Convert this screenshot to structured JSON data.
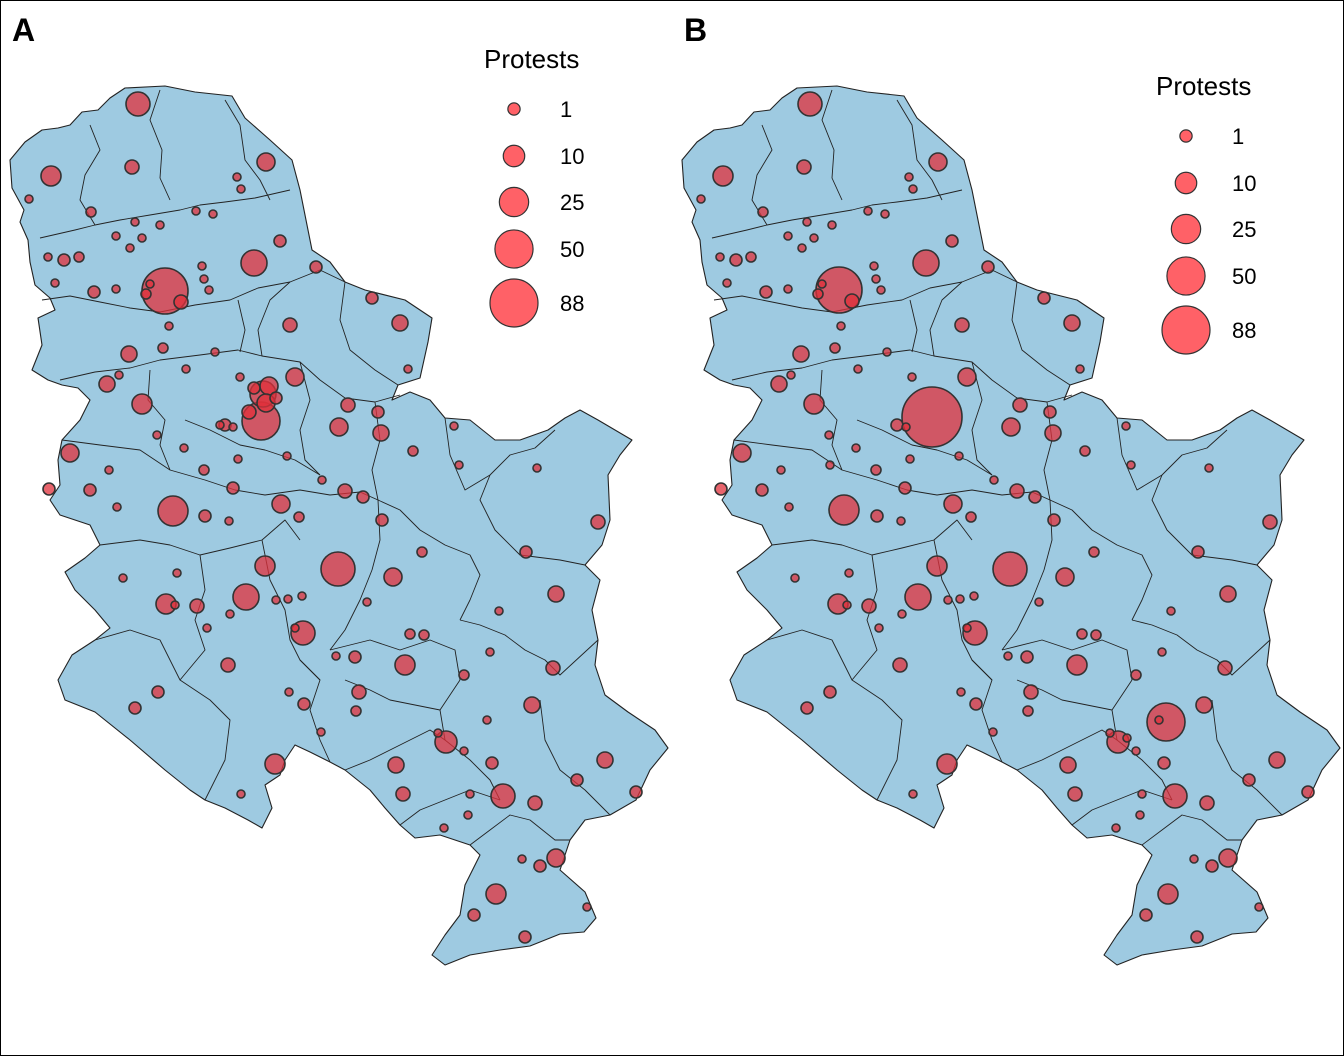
{
  "panels": [
    {
      "id": "A",
      "label": "A",
      "legend": {
        "title": "Protests",
        "entries": [
          {
            "label": "1",
            "value": 1
          },
          {
            "label": "10",
            "value": 10
          },
          {
            "label": "25",
            "value": 25
          },
          {
            "label": "50",
            "value": 50
          },
          {
            "label": "88",
            "value": 88
          }
        ]
      }
    },
    {
      "id": "B",
      "label": "B",
      "legend": {
        "title": "Protests",
        "entries": [
          {
            "label": "1",
            "value": 1
          },
          {
            "label": "10",
            "value": 10
          },
          {
            "label": "25",
            "value": 25
          },
          {
            "label": "50",
            "value": 50
          },
          {
            "label": "88",
            "value": 88
          }
        ]
      }
    }
  ],
  "colors": {
    "land": "#9ecae1",
    "bubble_fill": "#e0303b",
    "legend_fill": "#ff6167",
    "outline": "#222222"
  }
}
